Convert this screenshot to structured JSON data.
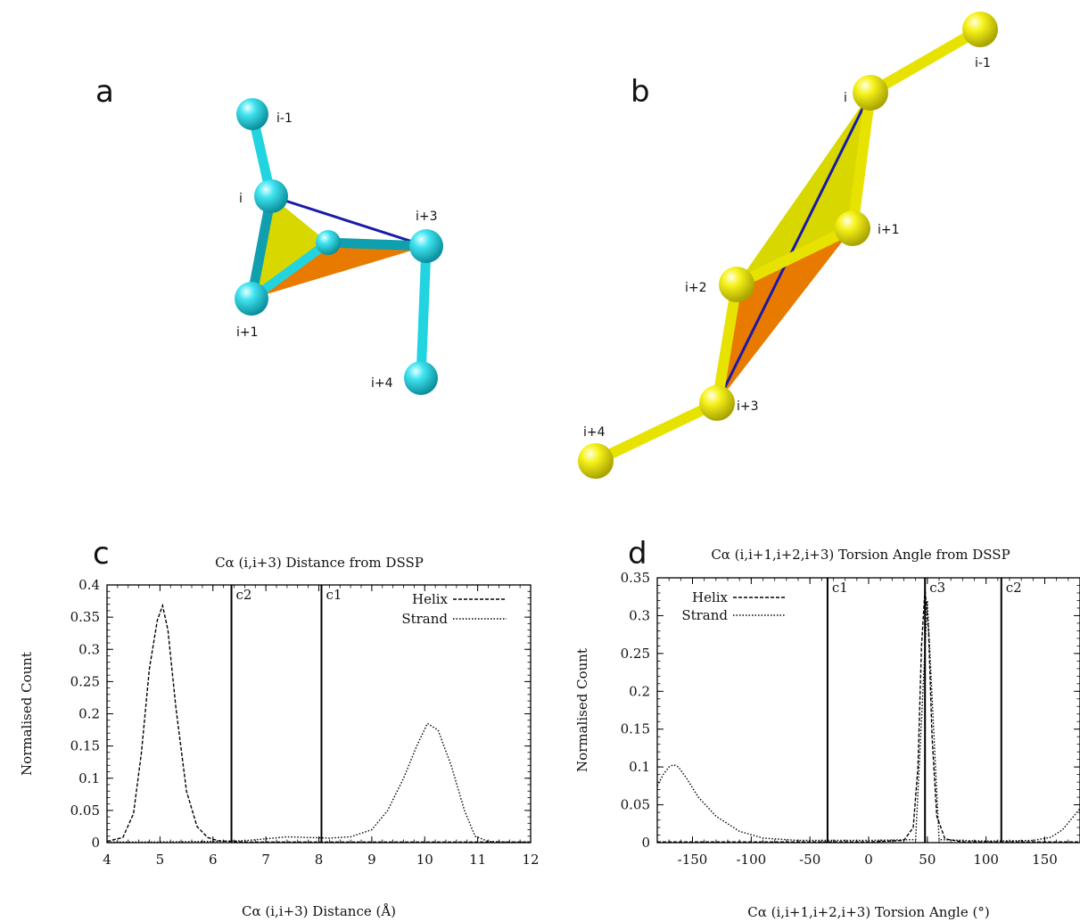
{
  "panels": {
    "a": {
      "label": "a",
      "atoms": [
        "i-1",
        "i",
        "i+1",
        "i+3",
        "i+4"
      ]
    },
    "b": {
      "label": "b",
      "atoms": [
        "i-1",
        "i",
        "i+1",
        "i+2",
        "i+3",
        "i+4"
      ]
    },
    "c": {
      "label": "c"
    },
    "d": {
      "label": "d"
    }
  },
  "colors": {
    "cyan": "#22d3e0",
    "cyan_dark": "#0f9fae",
    "yellow_sphere": "#f3ee12",
    "yellow_face": "#d8d800",
    "orange_face": "#e87a00",
    "blue_line": "#1a1aa8"
  },
  "chart_data": [
    {
      "type": "line",
      "title": "Cα (i,i+3) Distance from DSSP",
      "xlabel": "Cα (i,i+3) Distance (Å)",
      "ylabel": "Normalised Count",
      "xlim": [
        4,
        12
      ],
      "ylim": [
        0,
        0.4
      ],
      "xticks": [
        "4",
        "5",
        "6",
        "7",
        "8",
        "9",
        "10",
        "11",
        "12"
      ],
      "yticks": [
        "0",
        "0.05",
        "0.1",
        "0.15",
        "0.2",
        "0.25",
        "0.3",
        "0.35",
        "0.4"
      ],
      "legend_position": "top-right",
      "cutoffs": [
        {
          "name": "c2",
          "x": 6.35
        },
        {
          "name": "c1",
          "x": 8.05
        }
      ],
      "series": [
        {
          "name": "Helix",
          "style": "dashed",
          "x": [
            4.0,
            4.3,
            4.5,
            4.65,
            4.8,
            4.95,
            5.05,
            5.15,
            5.3,
            5.5,
            5.7,
            5.9,
            6.1,
            6.3,
            6.6,
            7.0,
            8.0,
            9.0,
            10.0,
            11.0,
            12.0
          ],
          "y": [
            0.002,
            0.008,
            0.045,
            0.14,
            0.27,
            0.345,
            0.368,
            0.33,
            0.21,
            0.08,
            0.025,
            0.008,
            0.003,
            0.002,
            0.001,
            0.001,
            0.001,
            0.001,
            0.001,
            0.001,
            0.001
          ]
        },
        {
          "name": "Strand",
          "style": "dotted",
          "x": [
            4.0,
            5.0,
            6.0,
            6.6,
            7.0,
            7.4,
            7.8,
            8.2,
            8.6,
            9.0,
            9.3,
            9.6,
            9.85,
            10.05,
            10.25,
            10.5,
            10.75,
            10.95,
            11.2,
            11.5,
            12.0
          ],
          "y": [
            0.001,
            0.001,
            0.002,
            0.003,
            0.006,
            0.009,
            0.008,
            0.007,
            0.009,
            0.02,
            0.05,
            0.1,
            0.15,
            0.185,
            0.175,
            0.12,
            0.05,
            0.01,
            0.002,
            0.001,
            0.001
          ]
        }
      ]
    },
    {
      "type": "line",
      "title": "Cα (i,i+1,i+2,i+3) Torsion Angle from DSSP",
      "xlabel": "Cα (i,i+1,i+2,i+3) Torsion Angle (°)",
      "ylabel": "Normalised Count",
      "xlim": [
        -180,
        180
      ],
      "ylim": [
        0,
        0.35
      ],
      "xticks": [
        "-150",
        "-100",
        "-50",
        "0",
        "50",
        "100",
        "150"
      ],
      "yticks": [
        "0",
        "0.05",
        "0.1",
        "0.15",
        "0.2",
        "0.25",
        "0.3",
        "0.35"
      ],
      "legend_position": "top-left",
      "cutoffs": [
        {
          "name": "c1",
          "x": -35
        },
        {
          "name": "c3",
          "x": 48
        },
        {
          "name": "c2",
          "x": 113
        }
      ],
      "series": [
        {
          "name": "Helix",
          "style": "dashed",
          "x": [
            -180,
            -100,
            0,
            30,
            38,
            42,
            45,
            48,
            51,
            54,
            58,
            65,
            80,
            120,
            180
          ],
          "y": [
            0.001,
            0.001,
            0.001,
            0.003,
            0.02,
            0.1,
            0.26,
            0.335,
            0.28,
            0.14,
            0.035,
            0.005,
            0.001,
            0.001,
            0.001
          ]
        },
        {
          "name": "Strand",
          "style": "dotted",
          "x": [
            -180,
            -175,
            -170,
            -166,
            -162,
            -155,
            -145,
            -130,
            -110,
            -90,
            -60,
            0,
            40,
            50,
            60,
            100,
            140,
            155,
            165,
            172,
            180
          ],
          "y": [
            0.075,
            0.09,
            0.1,
            0.103,
            0.1,
            0.085,
            0.06,
            0.035,
            0.015,
            0.006,
            0.003,
            0.003,
            0.004,
            0.32,
            0.004,
            0.002,
            0.003,
            0.007,
            0.017,
            0.03,
            0.045
          ]
        }
      ]
    }
  ]
}
